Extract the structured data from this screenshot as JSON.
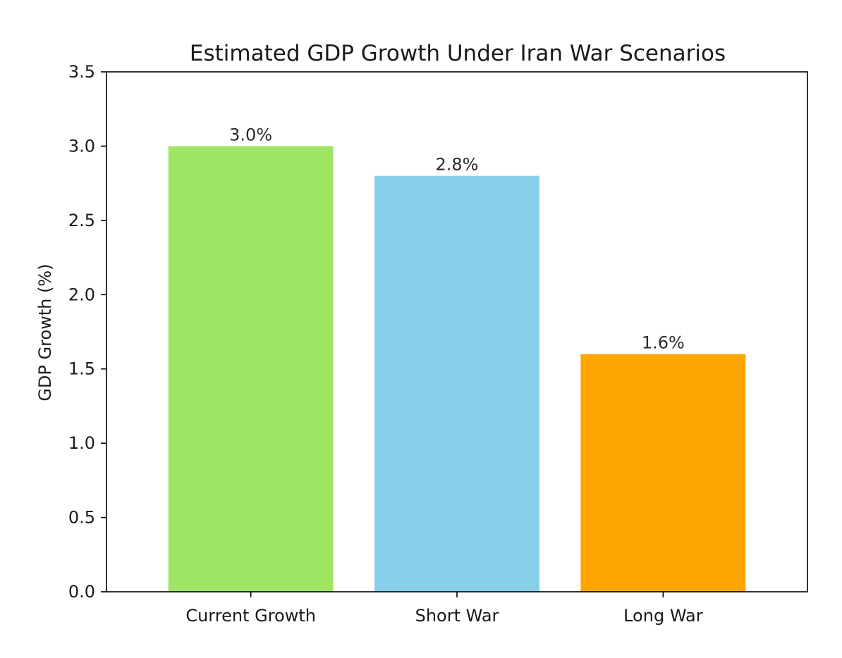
{
  "chart_data": {
    "type": "bar",
    "title": "Estimated GDP Growth Under Iran War Scenarios",
    "xlabel": "",
    "ylabel": "GDP Growth (%)",
    "categories": [
      "Current Growth",
      "Short War",
      "Long War"
    ],
    "values": [
      3.0,
      2.8,
      1.6
    ],
    "value_labels": [
      "3.0%",
      "2.8%",
      "1.6%"
    ],
    "colors": [
      "#9EE564",
      "#87CEEB",
      "#FFA500"
    ],
    "ylim": [
      0,
      3.5
    ],
    "yticks": [
      0.0,
      0.5,
      1.0,
      1.5,
      2.0,
      2.5,
      3.0,
      3.5
    ],
    "ytick_labels": [
      "0.0",
      "0.5",
      "1.0",
      "1.5",
      "2.0",
      "2.5",
      "3.0",
      "3.5"
    ],
    "grid": false,
    "legend": "none"
  }
}
